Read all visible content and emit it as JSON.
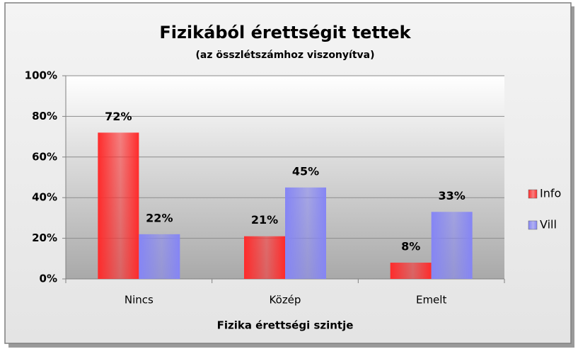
{
  "chart_data": {
    "type": "bar",
    "title": "Fizikából érettségit tettek",
    "subtitle": "(az összlétszámhoz viszonyítva)",
    "x_label": "Fizika érettségi szintje",
    "categories": [
      "Nincs",
      "Közép",
      "Emelt"
    ],
    "series": [
      {
        "name": "Info",
        "color": "#ff2b2b",
        "values": [
          72,
          21,
          8
        ],
        "value_labels": [
          "72%",
          "21%",
          "8%"
        ]
      },
      {
        "name": "Vill",
        "color": "#8585f5",
        "values": [
          22,
          45,
          33
        ],
        "value_labels": [
          "22%",
          "45%",
          "33%"
        ]
      }
    ],
    "ylim": [
      0,
      100
    ],
    "yticks": [
      {
        "value": 0,
        "label": "0%"
      },
      {
        "value": 20,
        "label": "20%"
      },
      {
        "value": 40,
        "label": "40%"
      },
      {
        "value": 60,
        "label": "60%"
      },
      {
        "value": 80,
        "label": "80%"
      },
      {
        "value": 100,
        "label": "100%"
      }
    ],
    "grid": true,
    "legend": "right"
  }
}
